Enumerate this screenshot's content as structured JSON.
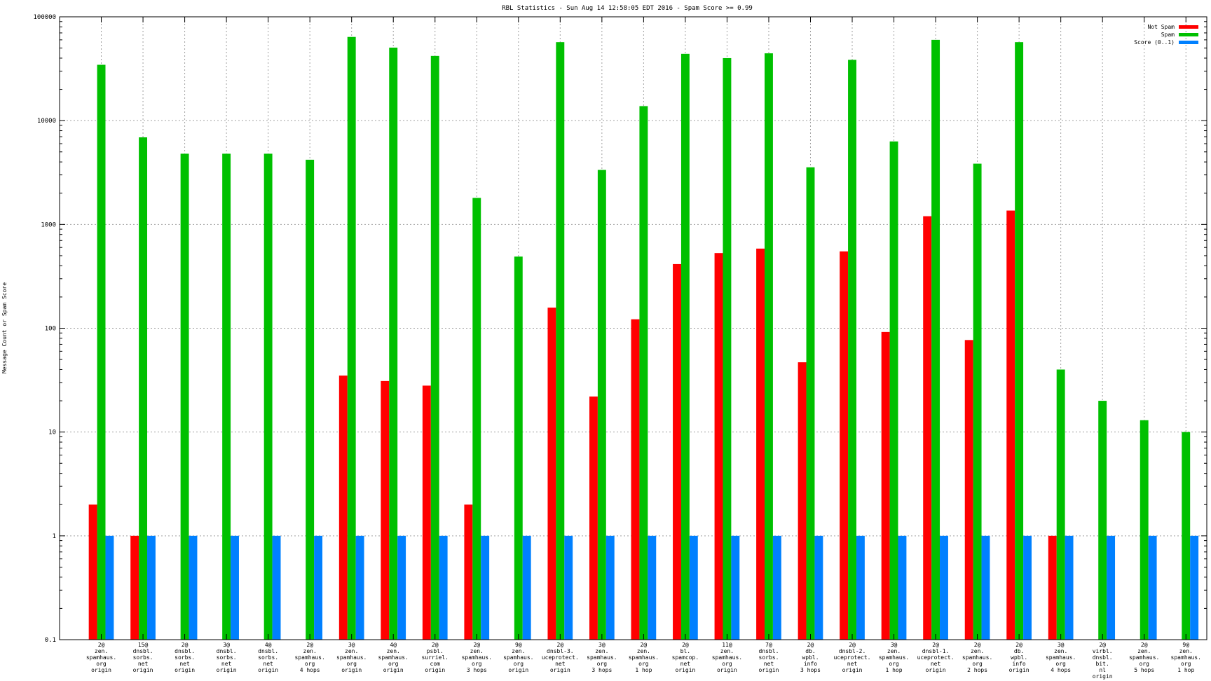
{
  "chart_data": {
    "type": "bar",
    "title": "RBL Statistics - Sun Aug 14 12:58:05 EDT 2016 - Spam Score >= 0.99",
    "xlabel": "",
    "ylabel": "Message Count or Spam Score",
    "yscale": "log",
    "ylim": [
      0.1,
      100000
    ],
    "yticks": [
      "0.1",
      "1",
      "10",
      "100",
      "1000",
      "10000",
      "100000"
    ],
    "grid": true,
    "legend_position": "top-right",
    "categories": [
      "2@\nzen.\nspamhaus.\norg\norigin",
      "15@\ndnsbl.\nsorbs.\nnet\norigin",
      "2@\ndnsbl.\nsorbs.\nnet\norigin",
      "3@\ndnsbl.\nsorbs.\nnet\norigin",
      "4@\ndnsbl.\nsorbs.\nnet\norigin",
      "2@\nzen.\nspamhaus.\norg\n4 hops",
      "3@\nzen.\nspamhaus.\norg\norigin",
      "4@\nzen.\nspamhaus.\norg\norigin",
      "2@\npsbl.\nsurriel.\ncom\norigin",
      "2@\nzen.\nspamhaus.\norg\n3 hops",
      "9@\nzen.\nspamhaus.\norg\norigin",
      "2@\ndnsbl-3.\nuceprotect.\nnet\norigin",
      "3@\nzen.\nspamhaus.\norg\n3 hops",
      "2@\nzen.\nspamhaus.\norg\n1 hop",
      "2@\nbl.\nspamcop.\nnet\norigin",
      "11@\nzen.\nspamhaus.\norg\norigin",
      "7@\ndnsbl.\nsorbs.\nnet\norigin",
      "2@\ndb.\nwpbl.\ninfo\n3 hops",
      "2@\ndnsbl-2.\nuceprotect.\nnet\norigin",
      "3@\nzen.\nspamhaus.\norg\n1 hop",
      "2@\ndnsbl-1.\nuceprotect.\nnet\norigin",
      "2@\nzen.\nspamhaus.\norg\n2 hops",
      "2@\ndb.\nwpbl.\ninfo\norigin",
      "3@\nzen.\nspamhaus.\norg\n4 hops",
      "2@\nvirbl.\ndnsbl.\nbit.\nnl\norigin",
      "2@\nzen.\nspamhaus.\norg\n5 hops",
      "9@\nzen.\nspamhaus.\norg\n1 hop"
    ],
    "series": [
      {
        "name": "Not Spam",
        "color": "#ff0000",
        "values": [
          2,
          1,
          null,
          null,
          null,
          null,
          35,
          31,
          28,
          2,
          null,
          158,
          22,
          122,
          415,
          530,
          585,
          47,
          550,
          92,
          1200,
          77,
          1360,
          1,
          null,
          null,
          null
        ]
      },
      {
        "name": "Spam",
        "color": "#00c000",
        "values": [
          34500,
          6900,
          4800,
          4800,
          4800,
          4200,
          64000,
          50500,
          42000,
          1800,
          490,
          57000,
          3350,
          13800,
          44000,
          40000,
          44500,
          3550,
          38500,
          6300,
          60000,
          3850,
          57000,
          40,
          20,
          13,
          10
        ]
      },
      {
        "name": "Score (0..1)",
        "color": "#0080ff",
        "values": [
          1,
          1,
          1,
          1,
          1,
          1,
          1,
          1,
          1,
          1,
          1,
          1,
          1,
          1,
          1,
          1,
          1,
          1,
          1,
          1,
          1,
          1,
          1,
          1,
          1,
          1,
          1
        ]
      }
    ]
  }
}
